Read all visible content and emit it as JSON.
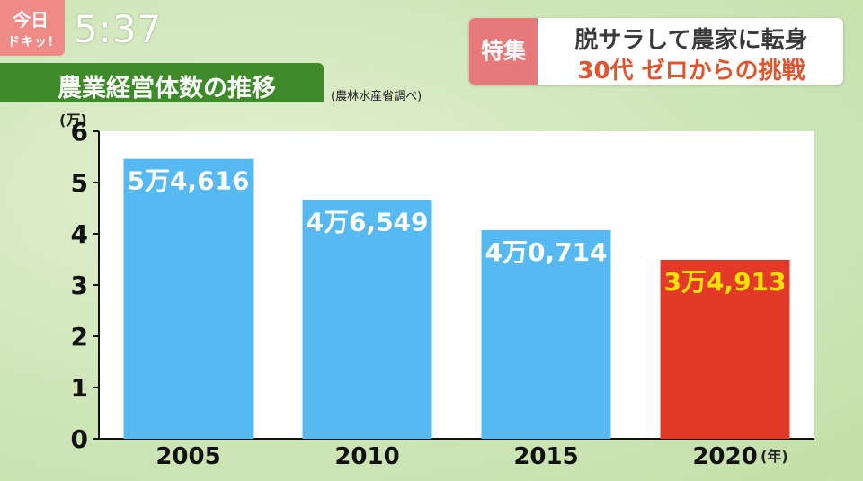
{
  "logo": {
    "line1": "今日",
    "line2": "ドキッ!"
  },
  "clock": "5:37",
  "title": "農業経営体数の推移",
  "source": "(農林水産省調べ)",
  "special": {
    "tag": "特集",
    "line1": "脱サラして農家に転身",
    "line2": "30代 ゼロからの挑戦"
  },
  "colors": {
    "bar": "#56b9f2",
    "highlight": "#e23a26",
    "highlight_label": "#ffe100",
    "highlight_tick": "#d42b1a"
  },
  "chart_data": {
    "type": "bar",
    "title": "農業経営体数の推移",
    "ylabel": "(万)",
    "xlabel": "(年)",
    "ylim": [
      0,
      6
    ],
    "yticks": [
      0,
      1,
      2,
      3,
      4,
      5,
      6
    ],
    "grid": false,
    "categories": [
      "2005",
      "2010",
      "2015",
      "2020"
    ],
    "values": [
      5.4616,
      4.6549,
      4.0714,
      3.4913
    ],
    "data_labels": [
      "5万4,616",
      "4万6,549",
      "4万0,714",
      "3万4,913"
    ],
    "highlight_index": 3
  }
}
